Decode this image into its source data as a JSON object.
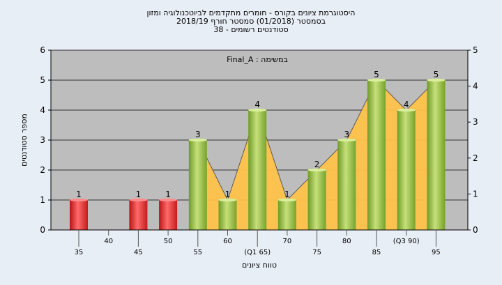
{
  "chart_data": {
    "type": "bar",
    "title_lines": [
      "היסטוגרמת ציונים בקורס - חומרים מתקדמים לביוטכנולוגיה ומזון",
      "בסמסטר  (01/2018)  סמסטר חורף 2018/19",
      "סטודנטים רשומים - 38"
    ],
    "legend_label": "Final_A : במשימה",
    "xlabel": "טווח ציונים",
    "ylabel": "מספר סטודנטים",
    "ylim": [
      0,
      6
    ],
    "y2lim": [
      0,
      5
    ],
    "yticks": [
      "0",
      "1",
      "2",
      "3",
      "4",
      "5",
      "6"
    ],
    "y2ticks": [
      "0",
      "1",
      "2",
      "3",
      "4",
      "5"
    ],
    "categories": [
      "35",
      "40",
      "45",
      "50",
      "55",
      "60",
      "(Q1 65)",
      "70",
      "75",
      "80",
      "85",
      "(Q3 90)",
      "95"
    ],
    "values": [
      1,
      0,
      1,
      1,
      3,
      1,
      4,
      1,
      2,
      3,
      5,
      4,
      5
    ],
    "data_labels": [
      "1",
      "",
      "1",
      "1",
      "3",
      "1",
      "4",
      "1",
      "2",
      "3",
      "5",
      "4",
      "5"
    ],
    "bar_status": [
      "fail",
      "none",
      "fail",
      "fail",
      "pass",
      "pass",
      "pass",
      "pass",
      "pass",
      "pass",
      "pass",
      "pass",
      "pass"
    ],
    "colors": {
      "fail": "#e02828",
      "pass": "#8fbf3c",
      "area": "#ffc34a",
      "plot_bg": "#bdbdbd",
      "background": "#e8eef6"
    }
  }
}
